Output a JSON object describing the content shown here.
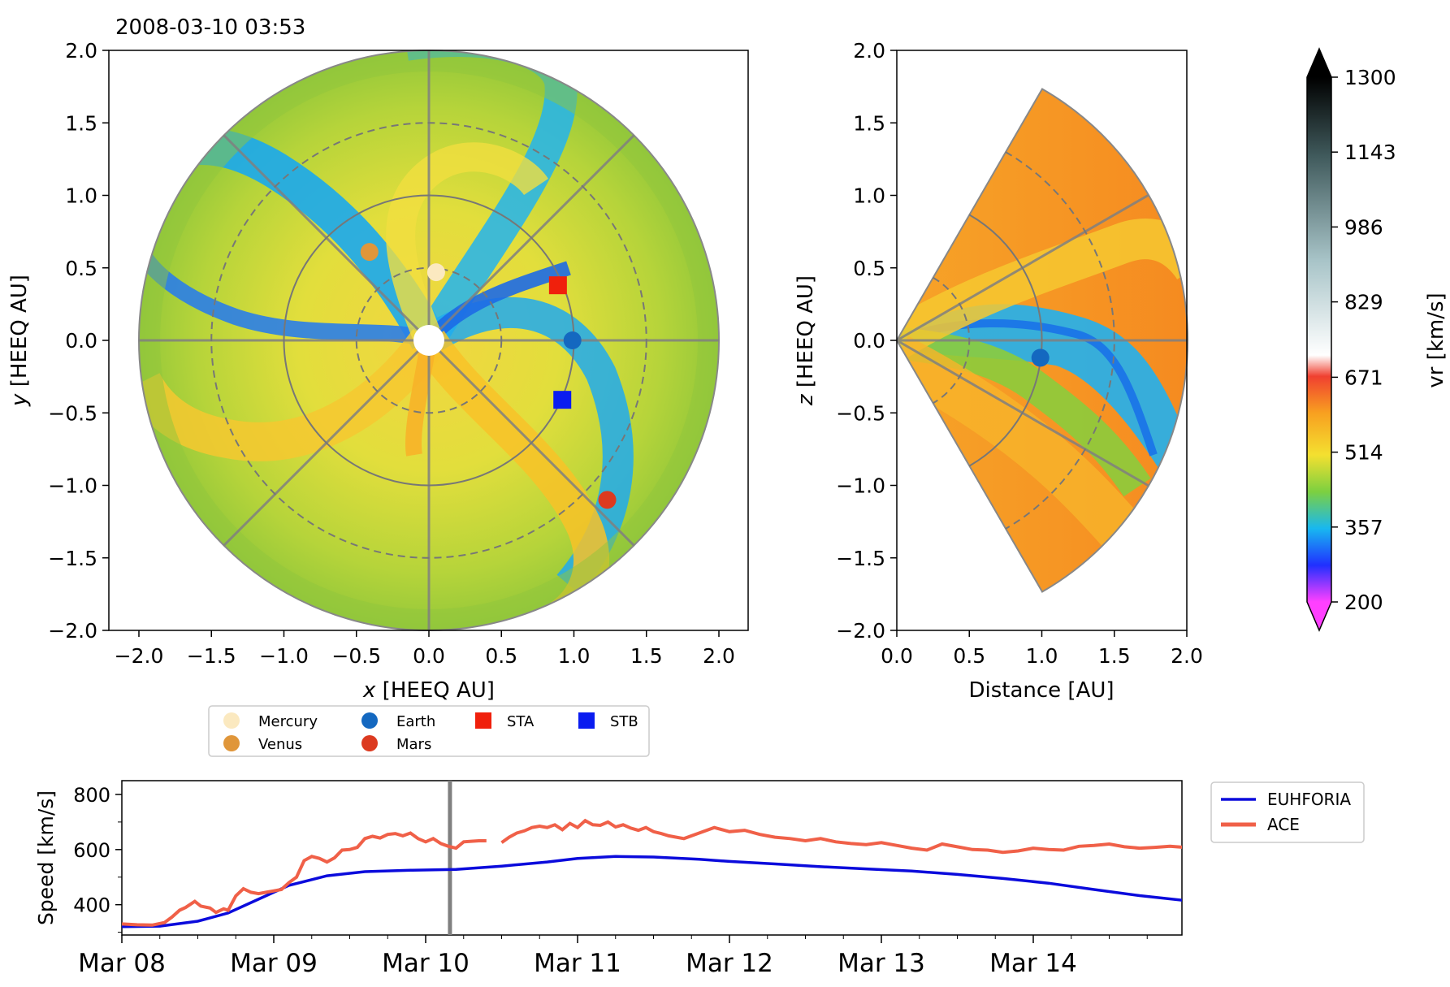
{
  "timestamp": "2008-03-10 03:53",
  "colors": {
    "axis": "#000000",
    "grid": "#808080",
    "euhforia": "#0b0bdc",
    "ace": "#f06048",
    "mercury": "#fbe9c0",
    "venus": "#e0963a",
    "earth": "#1468c0",
    "mars": "#dc3a20",
    "sta": "#f0200c",
    "stb": "#0a1cf0"
  },
  "chart_data": [
    {
      "id": "ecliptic",
      "type": "heatmap",
      "xlabel": "HEEQ AU",
      "xlabel_prefix": "x",
      "ylabel": "HEEQ AU",
      "ylabel_prefix": "y",
      "xlim": [
        -2.2,
        2.2
      ],
      "ylim": [
        -2.0,
        2.0
      ],
      "xticks": [
        "−2.0",
        "−1.5",
        "−1.0",
        "−0.5",
        "0.0",
        "0.5",
        "1.0",
        "1.5",
        "2.0"
      ],
      "yticks": [
        "−2.0",
        "−1.5",
        "−1.0",
        "−0.5",
        "0.0",
        "0.5",
        "1.0",
        "1.5",
        "2.0"
      ],
      "domain_radius_au": 2.0,
      "bodies": [
        {
          "name": "Mercury",
          "x": 0.05,
          "y": 0.47
        },
        {
          "name": "Venus",
          "x": -0.41,
          "y": 0.61
        },
        {
          "name": "Earth",
          "x": 0.99,
          "y": 0.0
        },
        {
          "name": "Mars",
          "x": 1.23,
          "y": -1.1
        },
        {
          "name": "STA",
          "x": 0.89,
          "y": 0.38
        },
        {
          "name": "STB",
          "x": 0.92,
          "y": -0.41
        }
      ]
    },
    {
      "id": "meridional",
      "type": "heatmap",
      "xlabel": "Distance [AU]",
      "ylabel": "HEEQ AU",
      "ylabel_prefix": "z",
      "xlim": [
        0.0,
        2.0
      ],
      "ylim": [
        -2.0,
        2.0
      ],
      "xticks": [
        "0.0",
        "0.5",
        "1.0",
        "1.5",
        "2.0"
      ],
      "yticks": [
        "−2.0",
        "−1.5",
        "−1.0",
        "−0.5",
        "0.0",
        "0.5",
        "1.0",
        "1.5",
        "2.0"
      ],
      "latitude_extent_deg": 60,
      "bodies": [
        {
          "name": "Earth",
          "x": 0.99,
          "z": -0.12
        }
      ]
    },
    {
      "id": "colorbar",
      "type": "colorbar",
      "label": "vr  [km/s]",
      "range": [
        200,
        1300
      ],
      "tick_labels": [
        "200",
        "357",
        "514",
        "671",
        "829",
        "986",
        "1143",
        "1300"
      ]
    },
    {
      "id": "timeseries",
      "type": "line",
      "ylabel": "Speed [km/s]",
      "ylim": [
        290,
        850
      ],
      "yticks": [
        "400",
        "600",
        "800"
      ],
      "x_range_days": [
        0,
        7
      ],
      "x_tick_labels": [
        "Mar 08",
        "Mar 09",
        "Mar 10",
        "Mar 11",
        "Mar 12",
        "Mar 13",
        "Mar 14"
      ],
      "current_time_day": 2.16,
      "series": [
        {
          "name": "EUHFORIA",
          "t": [
            0.0,
            0.25,
            0.5,
            0.7,
            0.9,
            1.1,
            1.35,
            1.6,
            1.9,
            2.2,
            2.5,
            2.8,
            3.0,
            3.25,
            3.5,
            3.8,
            4.0,
            4.3,
            4.6,
            4.9,
            5.2,
            5.5,
            5.8,
            6.1,
            6.4,
            6.7,
            7.0
          ],
          "v": [
            320,
            322,
            340,
            370,
            420,
            470,
            505,
            520,
            525,
            528,
            540,
            555,
            568,
            575,
            573,
            565,
            557,
            548,
            538,
            530,
            522,
            510,
            495,
            478,
            455,
            433,
            415
          ]
        },
        {
          "name": "ACE",
          "t": [
            0.0,
            0.1,
            0.2,
            0.28,
            0.33,
            0.38,
            0.42,
            0.48,
            0.52,
            0.58,
            0.62,
            0.67,
            0.7,
            0.75,
            0.8,
            0.85,
            0.9,
            0.95,
            1.0,
            1.05,
            1.1,
            1.15,
            1.2,
            1.25,
            1.3,
            1.35,
            1.4,
            1.45,
            1.5,
            1.55,
            1.6,
            1.65,
            1.7,
            1.75,
            1.8,
            1.85,
            1.9,
            1.95,
            2.0,
            2.05,
            2.1,
            2.15,
            2.2,
            2.25,
            2.3,
            2.35,
            2.4,
            null,
            2.5,
            2.55,
            2.6,
            2.65,
            2.7,
            2.75,
            2.8,
            2.85,
            2.9,
            2.95,
            3.0,
            3.05,
            3.1,
            3.15,
            3.2,
            3.25,
            3.3,
            3.35,
            3.4,
            3.45,
            3.5,
            3.55,
            3.6,
            3.7,
            3.8,
            3.9,
            4.0,
            4.1,
            4.2,
            4.3,
            4.4,
            4.5,
            4.6,
            4.7,
            4.8,
            4.9,
            5.0,
            5.1,
            5.2,
            5.3,
            5.4,
            5.5,
            5.6,
            5.7,
            5.8,
            5.9,
            6.0,
            6.1,
            6.2,
            6.3,
            6.4,
            6.5,
            6.6,
            6.7,
            6.8,
            6.9,
            7.0
          ],
          "v": [
            330,
            327,
            326,
            335,
            355,
            380,
            390,
            412,
            395,
            388,
            372,
            385,
            380,
            432,
            458,
            445,
            440,
            445,
            450,
            455,
            480,
            500,
            560,
            575,
            568,
            555,
            570,
            598,
            600,
            608,
            640,
            648,
            642,
            655,
            658,
            650,
            660,
            640,
            628,
            640,
            622,
            612,
            605,
            628,
            630,
            632,
            632,
            null,
            625,
            645,
            660,
            668,
            680,
            685,
            680,
            690,
            672,
            695,
            680,
            705,
            690,
            688,
            700,
            682,
            690,
            678,
            670,
            680,
            665,
            658,
            650,
            640,
            660,
            680,
            665,
            670,
            655,
            645,
            640,
            632,
            640,
            628,
            622,
            618,
            625,
            615,
            605,
            598,
            620,
            610,
            600,
            598,
            590,
            595,
            605,
            600,
            598,
            612,
            615,
            620,
            610,
            605,
            608,
            612,
            608
          ]
        }
      ]
    }
  ],
  "legend_bodies": [
    {
      "label": "Mercury"
    },
    {
      "label": "Earth"
    },
    {
      "label": "STA"
    },
    {
      "label": "STB"
    },
    {
      "label": "Venus"
    },
    {
      "label": "Mars"
    }
  ],
  "legend_series": [
    {
      "label": "EUHFORIA"
    },
    {
      "label": "ACE"
    }
  ]
}
